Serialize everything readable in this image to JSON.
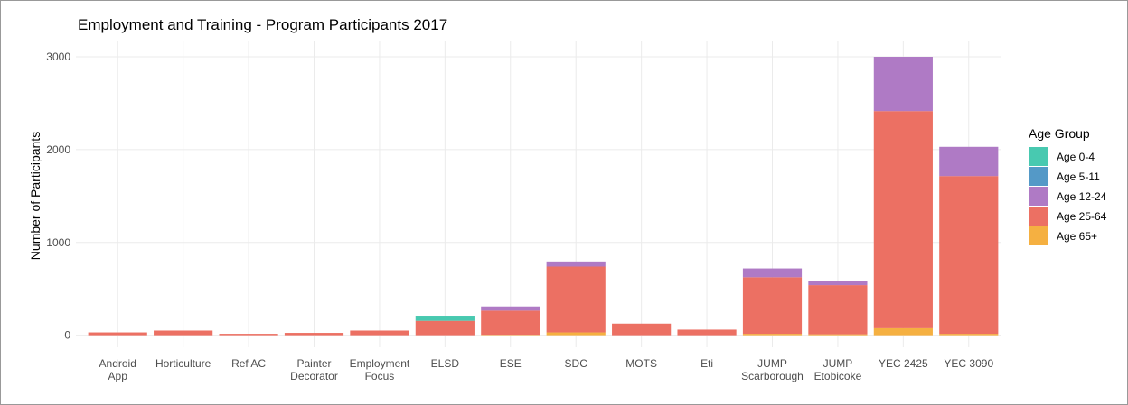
{
  "chart_data": {
    "type": "stacked_bar",
    "title": "Employment and Training - Program Participants 2017",
    "y_label": "Number of Participants",
    "legend_title": "Age Group",
    "legend_position": "right",
    "grid": true,
    "categories": [
      "Android\nApp",
      "Horticulture",
      "Ref AC",
      "Painter\nDecorator",
      "Employment\nFocus",
      "ELSD",
      "ESE",
      "SDC",
      "MOTS",
      "Eti",
      "JUMP\nScarborough",
      "JUMP\nEtobicoke",
      "YEC 2425",
      "YEC 3090"
    ],
    "series": [
      {
        "name": "Age 0-4",
        "color": "#48c9b0",
        "values": [
          0,
          0,
          0,
          0,
          0,
          55,
          0,
          0,
          0,
          0,
          0,
          0,
          0,
          0
        ]
      },
      {
        "name": "Age 5-11",
        "color": "#5499c7",
        "values": [
          0,
          0,
          0,
          0,
          0,
          0,
          0,
          0,
          0,
          0,
          0,
          0,
          0,
          0
        ]
      },
      {
        "name": "Age 12-24",
        "color": "#af7ac5",
        "values": [
          0,
          0,
          0,
          0,
          0,
          0,
          45,
          55,
          0,
          0,
          95,
          40,
          585,
          315
        ]
      },
      {
        "name": "Age 25-64",
        "color": "#ec7063",
        "values": [
          30,
          50,
          15,
          25,
          50,
          155,
          260,
          710,
          125,
          60,
          610,
          530,
          2340,
          1700
        ]
      },
      {
        "name": "Age 65+",
        "color": "#f5b041",
        "values": [
          0,
          0,
          0,
          0,
          0,
          0,
          5,
          30,
          0,
          0,
          15,
          10,
          75,
          15
        ]
      }
    ],
    "ylim": [
      -130,
      3175
    ],
    "yticks": [
      0,
      1000,
      2000,
      3000
    ]
  }
}
